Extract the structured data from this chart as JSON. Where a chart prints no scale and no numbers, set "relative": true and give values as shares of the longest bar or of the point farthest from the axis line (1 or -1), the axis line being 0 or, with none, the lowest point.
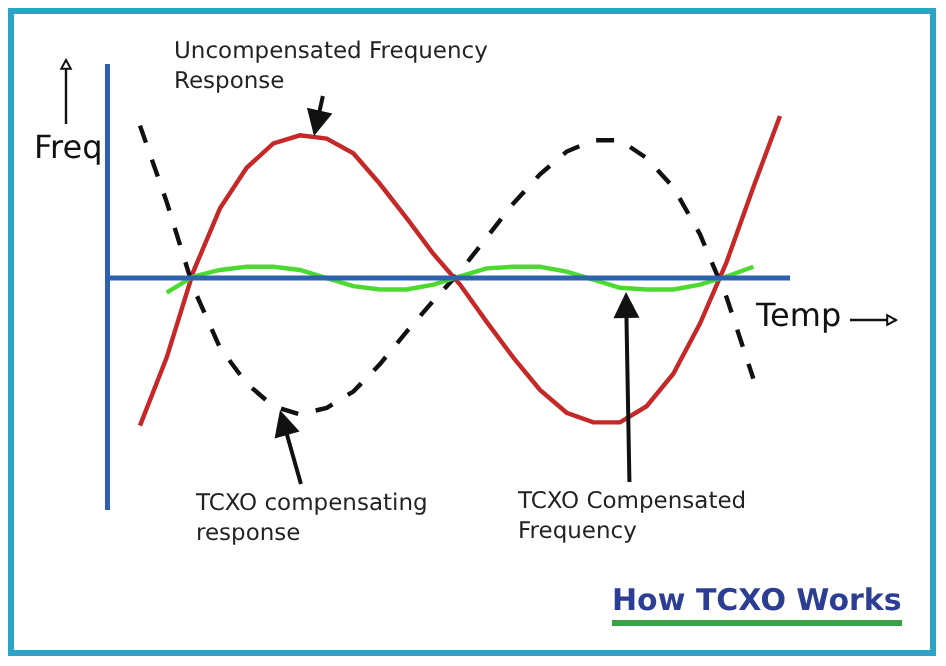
{
  "chart_data": {
    "type": "line",
    "relative": true,
    "xlabel": "Temp",
    "ylabel": "Freq",
    "ref_lines": [
      {
        "axis": "y",
        "value": 0,
        "color": "#2e62b0"
      }
    ],
    "grid": false,
    "marker": "none",
    "categories": [
      null,
      null,
      null,
      null,
      null,
      null,
      null,
      null,
      null,
      null,
      null,
      null,
      null,
      null,
      null,
      null,
      null,
      null,
      null,
      null,
      null,
      null,
      null,
      null,
      null
    ],
    "series": [
      {
        "color": "#c62828",
        "line_style": "solid",
        "values": [
          -0.91,
          -0.49,
          0.04,
          0.43,
          0.68,
          0.83,
          0.88,
          0.86,
          0.77,
          0.58,
          0.37,
          0.15,
          -0.04,
          -0.27,
          -0.49,
          -0.69,
          -0.83,
          -0.89,
          -0.89,
          -0.79,
          -0.59,
          -0.28,
          0.1,
          0.56,
          1.0
        ]
      },
      {
        "color": "#111111",
        "line_style": "dashed",
        "values": [
          0.94,
          0.47,
          -0.06,
          -0.43,
          -0.65,
          -0.79,
          -0.84,
          -0.8,
          -0.7,
          -0.53,
          -0.33,
          -0.14,
          0.04,
          0.25,
          0.46,
          0.64,
          0.78,
          0.85,
          0.85,
          0.74,
          0.56,
          0.27,
          -0.12,
          -0.62,
          null
        ]
      },
      {
        "color": "#4cd930",
        "line_style": "solid",
        "values": [
          null,
          -0.09,
          0.01,
          0.05,
          0.07,
          0.07,
          0.05,
          0,
          -0.05,
          -0.07,
          -0.07,
          -0.04,
          0.01,
          0.06,
          0.07,
          0.07,
          0.04,
          -0.01,
          -0.06,
          -0.07,
          -0.07,
          -0.04,
          0.01,
          0.07,
          null
        ]
      }
    ],
    "annotations": [
      "Uncompensated Frequency Response",
      "TCXO compensating response",
      "TCXO Compensated Frequency",
      "How TCXO Works"
    ]
  }
}
